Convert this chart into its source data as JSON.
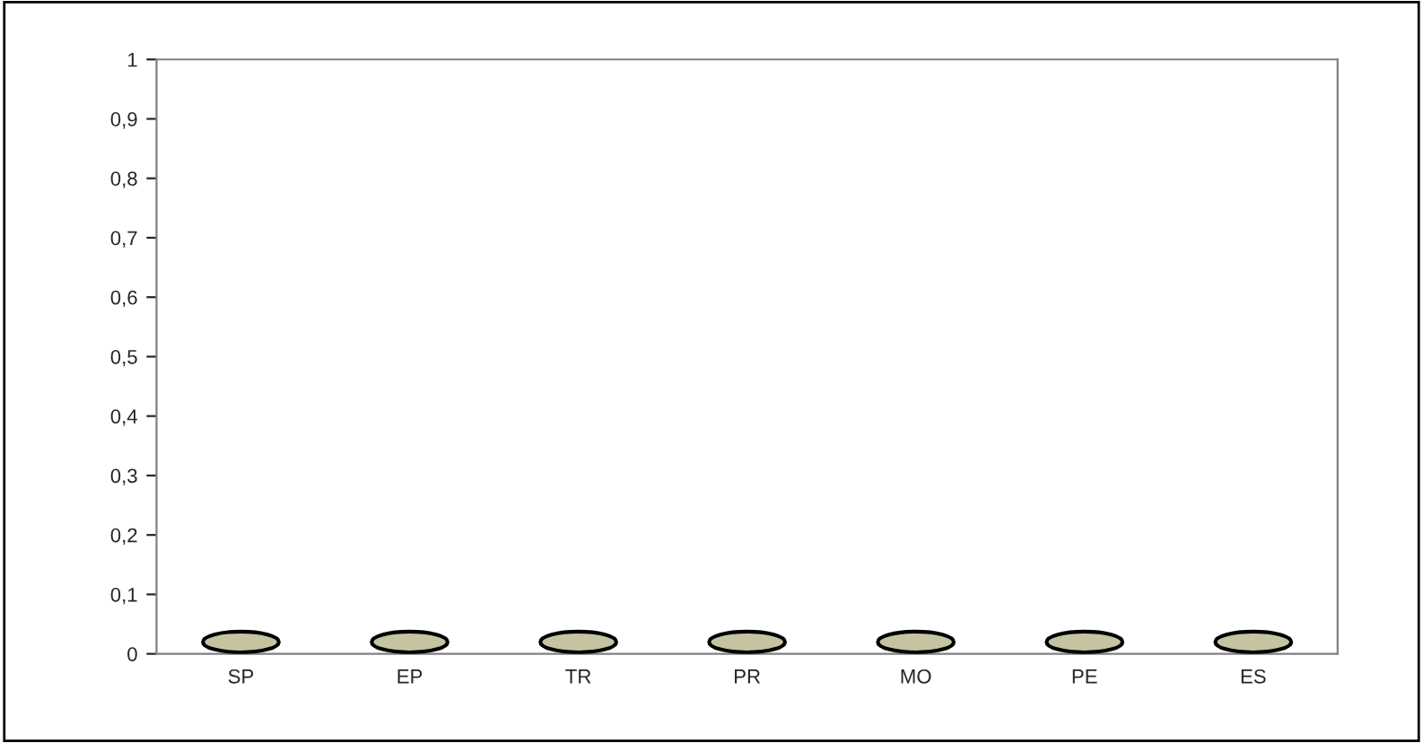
{
  "chart_data": {
    "type": "bar",
    "categories": [
      "SP",
      "EP",
      "TR",
      "PR",
      "MO",
      "PE",
      "ES"
    ],
    "values": [
      0,
      0,
      0,
      0,
      0,
      0,
      0
    ],
    "color": "#c4c4a0",
    "ylim": [
      0,
      1
    ],
    "yticks": [
      0,
      {
        "value": 0.1,
        "label": "0,1"
      },
      {
        "value": 0.2,
        "label": "0,2"
      },
      {
        "value": 0.3,
        "label": "0,3"
      },
      {
        "value": 0.4,
        "label": "0,4"
      },
      {
        "value": 0.5,
        "label": "0,5"
      },
      {
        "value": 0.6,
        "label": "0,6"
      },
      {
        "value": 0.7,
        "label": "0,7"
      },
      {
        "value": 0.8,
        "label": "0,8"
      },
      {
        "value": 0.9,
        "label": "0,9"
      },
      1
    ],
    "grid": false
  }
}
